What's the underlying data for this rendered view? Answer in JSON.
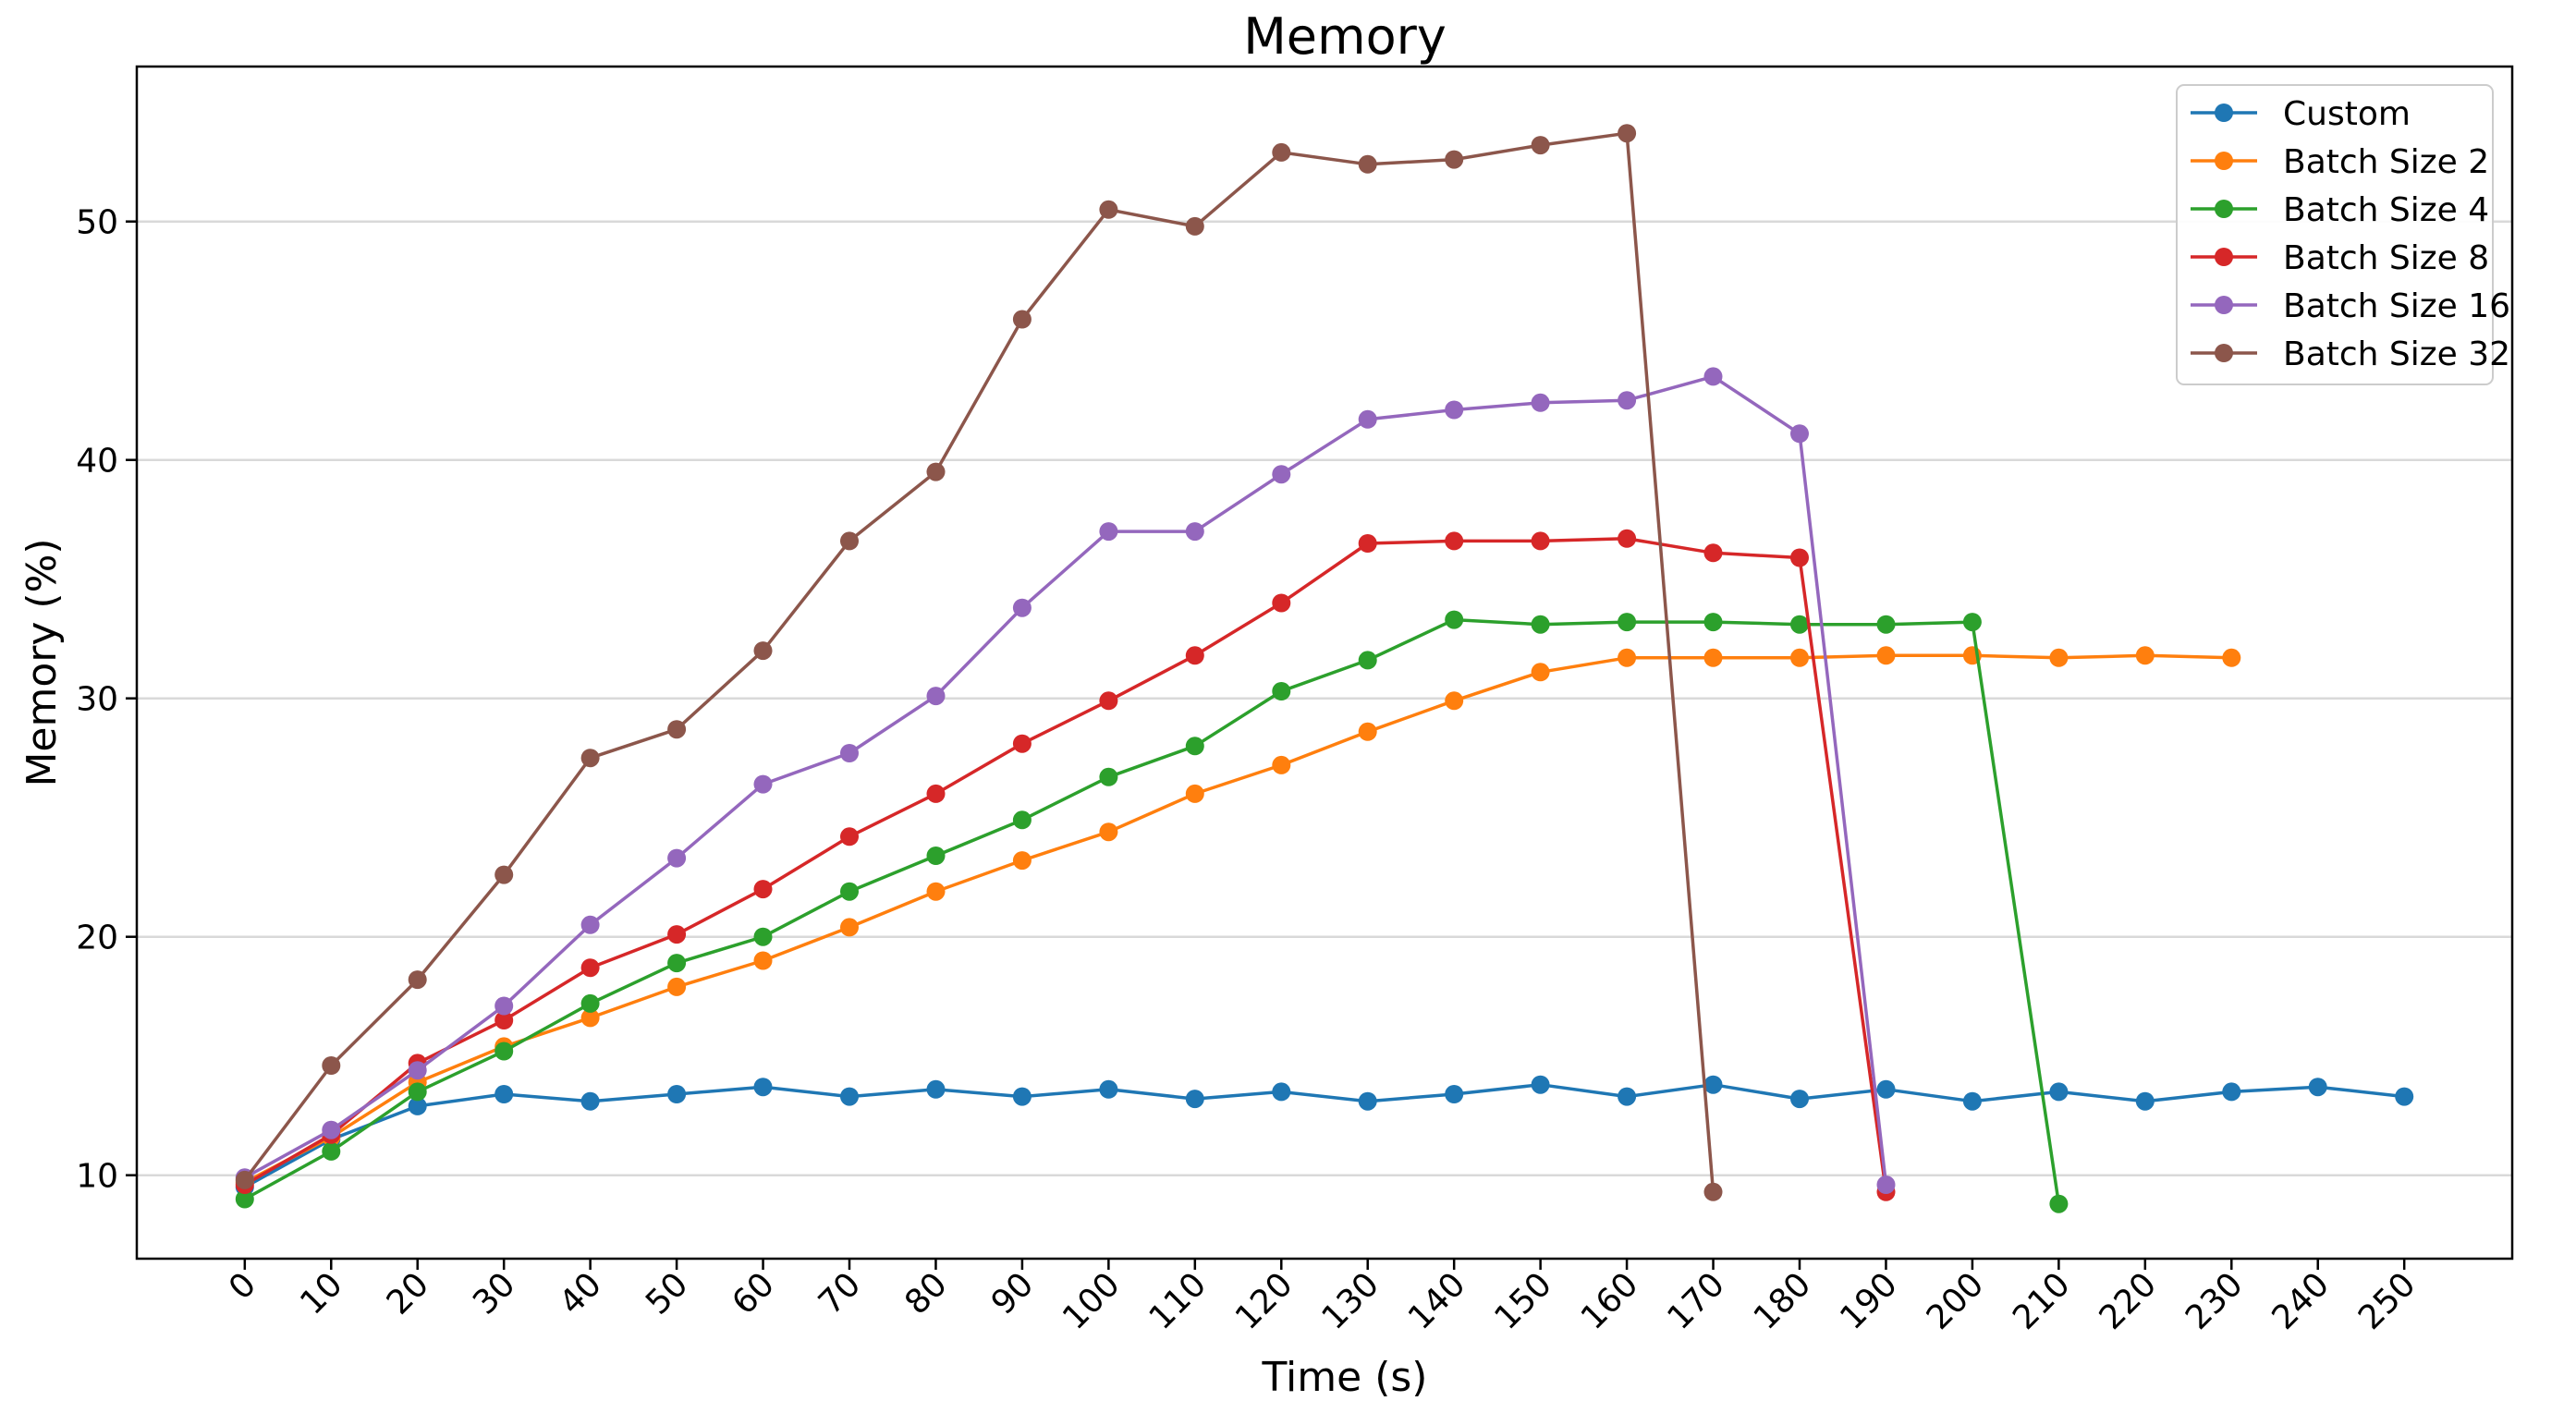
{
  "chart_data": {
    "type": "line",
    "title": "Memory",
    "xlabel": "Time (s)",
    "ylabel": "Memory (%)",
    "xlim": [
      -12.5,
      262.5
    ],
    "ylim": [
      6.5,
      56.5
    ],
    "xticks": [
      0,
      10,
      20,
      30,
      40,
      50,
      60,
      70,
      80,
      90,
      100,
      110,
      120,
      130,
      140,
      150,
      160,
      170,
      180,
      190,
      200,
      210,
      220,
      230,
      240,
      250
    ],
    "yticks": [
      10,
      20,
      30,
      40,
      50
    ],
    "grid": "horizontal",
    "legend_position": "top-right",
    "series": [
      {
        "name": "Custom",
        "color": "#1f77b4",
        "x": [
          0,
          10,
          20,
          30,
          40,
          50,
          60,
          70,
          80,
          90,
          100,
          110,
          120,
          130,
          140,
          150,
          160,
          170,
          180,
          190,
          200,
          210,
          220,
          230,
          240,
          250
        ],
        "values": [
          9.5,
          11.5,
          12.9,
          13.4,
          13.1,
          13.4,
          13.7,
          13.3,
          13.6,
          13.3,
          13.6,
          13.2,
          13.5,
          13.1,
          13.4,
          13.8,
          13.3,
          13.8,
          13.2,
          13.6,
          13.1,
          13.5,
          13.1,
          13.5,
          13.7,
          13.3
        ]
      },
      {
        "name": "Batch Size 2",
        "color": "#ff7f0e",
        "x": [
          0,
          10,
          20,
          30,
          40,
          50,
          60,
          70,
          80,
          90,
          100,
          110,
          120,
          130,
          140,
          150,
          160,
          170,
          180,
          190,
          200,
          210,
          220,
          230
        ],
        "values": [
          9.7,
          11.6,
          13.9,
          15.4,
          16.6,
          17.9,
          19.0,
          20.4,
          21.9,
          23.2,
          24.4,
          26.0,
          27.2,
          28.6,
          29.9,
          31.1,
          31.7,
          31.7,
          31.7,
          31.8,
          31.8,
          31.7,
          31.8,
          31.7
        ]
      },
      {
        "name": "Batch Size 4",
        "color": "#2ca02c",
        "x": [
          0,
          10,
          20,
          30,
          40,
          50,
          60,
          70,
          80,
          90,
          100,
          110,
          120,
          130,
          140,
          150,
          160,
          170,
          180,
          190,
          200,
          210
        ],
        "values": [
          9.0,
          11.0,
          13.5,
          15.2,
          17.2,
          18.9,
          20.0,
          21.9,
          23.4,
          24.9,
          26.7,
          28.0,
          30.3,
          31.6,
          33.3,
          33.1,
          33.2,
          33.2,
          33.1,
          33.1,
          33.2,
          8.8
        ]
      },
      {
        "name": "Batch Size 8",
        "color": "#d62728",
        "x": [
          0,
          10,
          20,
          30,
          40,
          50,
          60,
          70,
          80,
          90,
          100,
          110,
          120,
          130,
          140,
          150,
          160,
          170,
          180,
          190
        ],
        "values": [
          9.6,
          11.7,
          14.7,
          16.5,
          18.7,
          20.1,
          22.0,
          24.2,
          26.0,
          28.1,
          29.9,
          31.8,
          34.0,
          36.5,
          36.6,
          36.6,
          36.7,
          36.1,
          35.9,
          9.3
        ]
      },
      {
        "name": "Batch Size 16",
        "color": "#9467bd",
        "x": [
          0,
          10,
          20,
          30,
          40,
          50,
          60,
          70,
          80,
          90,
          100,
          110,
          120,
          130,
          140,
          150,
          160,
          170,
          180,
          190
        ],
        "values": [
          9.9,
          11.9,
          14.4,
          17.1,
          20.5,
          23.3,
          26.4,
          27.7,
          30.1,
          33.8,
          37.0,
          37.0,
          39.4,
          41.7,
          42.1,
          42.4,
          42.5,
          43.5,
          41.1,
          9.6
        ]
      },
      {
        "name": "Batch Size 32",
        "color": "#8c564b",
        "x": [
          0,
          10,
          20,
          30,
          40,
          50,
          60,
          70,
          80,
          90,
          100,
          110,
          120,
          130,
          140,
          150,
          160,
          170
        ],
        "values": [
          9.8,
          14.6,
          18.2,
          22.6,
          27.5,
          28.7,
          32.0,
          36.6,
          39.5,
          45.9,
          50.5,
          49.8,
          52.9,
          52.4,
          52.6,
          53.2,
          53.7,
          9.3
        ]
      }
    ]
  }
}
